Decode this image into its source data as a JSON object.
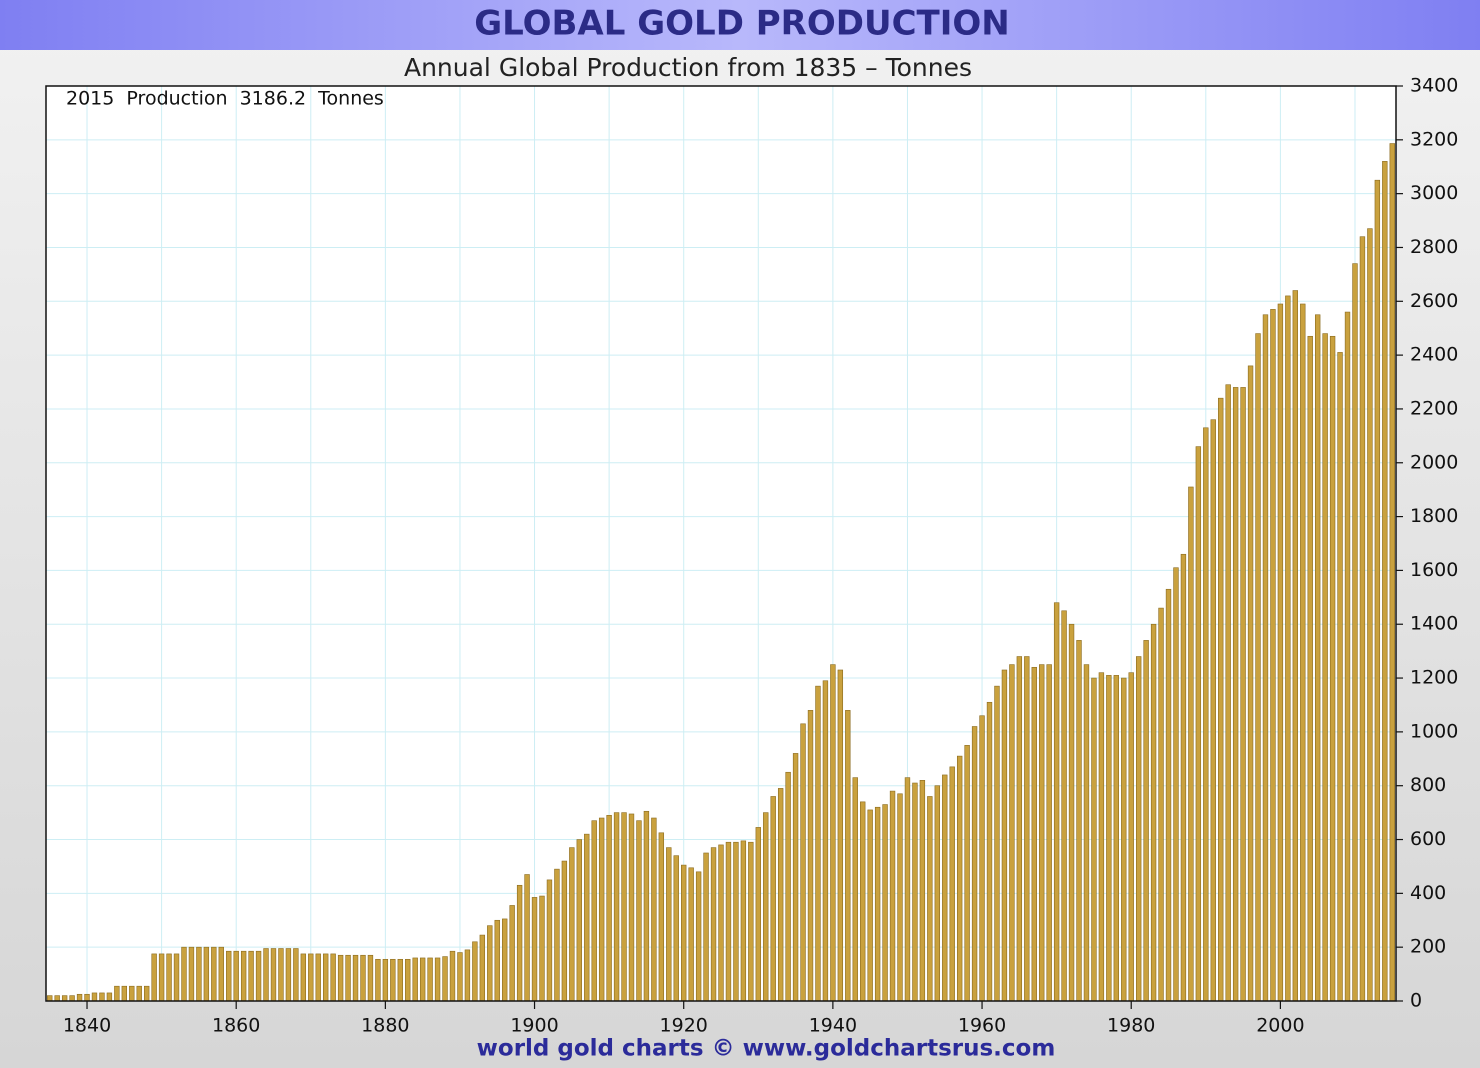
{
  "chart_data": {
    "type": "bar",
    "title": "GLOBAL GOLD PRODUCTION",
    "subtitle": "Annual Global Production from 1835 – Tonnes",
    "annotation": "2015  Production  3186.2  Tonnes",
    "footer": "world gold charts © www.goldchartsrus.com",
    "color": "#c9a13e",
    "grid": true,
    "xlim": [
      1834.5,
      2015.5
    ],
    "xticks": [
      1840,
      1860,
      1880,
      1900,
      1920,
      1940,
      1960,
      1980,
      2000
    ],
    "xgrid": [
      1840,
      1850,
      1860,
      1870,
      1880,
      1890,
      1900,
      1910,
      1920,
      1930,
      1940,
      1950,
      1960,
      1970,
      1980,
      1990,
      2000,
      2010
    ],
    "ylim": [
      0,
      3400
    ],
    "yticks": [
      0,
      200,
      400,
      600,
      800,
      1000,
      1200,
      1400,
      1600,
      1800,
      2000,
      2200,
      2400,
      2600,
      2800,
      3000,
      3200,
      3400
    ],
    "x": [
      1835,
      1836,
      1837,
      1838,
      1839,
      1840,
      1841,
      1842,
      1843,
      1844,
      1845,
      1846,
      1847,
      1848,
      1849,
      1850,
      1851,
      1852,
      1853,
      1854,
      1855,
      1856,
      1857,
      1858,
      1859,
      1860,
      1861,
      1862,
      1863,
      1864,
      1865,
      1866,
      1867,
      1868,
      1869,
      1870,
      1871,
      1872,
      1873,
      1874,
      1875,
      1876,
      1877,
      1878,
      1879,
      1880,
      1881,
      1882,
      1883,
      1884,
      1885,
      1886,
      1887,
      1888,
      1889,
      1890,
      1891,
      1892,
      1893,
      1894,
      1895,
      1896,
      1897,
      1898,
      1899,
      1900,
      1901,
      1902,
      1903,
      1904,
      1905,
      1906,
      1907,
      1908,
      1909,
      1910,
      1911,
      1912,
      1913,
      1914,
      1915,
      1916,
      1917,
      1918,
      1919,
      1920,
      1921,
      1922,
      1923,
      1924,
      1925,
      1926,
      1927,
      1928,
      1929,
      1930,
      1931,
      1932,
      1933,
      1934,
      1935,
      1936,
      1937,
      1938,
      1939,
      1940,
      1941,
      1942,
      1943,
      1944,
      1945,
      1946,
      1947,
      1948,
      1949,
      1950,
      1951,
      1952,
      1953,
      1954,
      1955,
      1956,
      1957,
      1958,
      1959,
      1960,
      1961,
      1962,
      1963,
      1964,
      1965,
      1966,
      1967,
      1968,
      1969,
      1970,
      1971,
      1972,
      1973,
      1974,
      1975,
      1976,
      1977,
      1978,
      1979,
      1980,
      1981,
      1982,
      1983,
      1984,
      1985,
      1986,
      1987,
      1988,
      1989,
      1990,
      1991,
      1992,
      1993,
      1994,
      1995,
      1996,
      1997,
      1998,
      1999,
      2000,
      2001,
      2002,
      2003,
      2004,
      2005,
      2006,
      2007,
      2008,
      2009,
      2010,
      2011,
      2012,
      2013,
      2014,
      2015
    ],
    "values": [
      20,
      20,
      20,
      20,
      25,
      25,
      30,
      30,
      30,
      55,
      55,
      55,
      55,
      55,
      175,
      175,
      175,
      175,
      200,
      200,
      200,
      200,
      200,
      200,
      185,
      185,
      185,
      185,
      185,
      195,
      195,
      195,
      195,
      195,
      175,
      175,
      175,
      175,
      175,
      170,
      170,
      170,
      170,
      170,
      155,
      155,
      155,
      155,
      155,
      160,
      160,
      160,
      160,
      165,
      185,
      180,
      190,
      220,
      245,
      280,
      300,
      305,
      355,
      430,
      470,
      385,
      390,
      450,
      490,
      520,
      570,
      600,
      620,
      670,
      680,
      690,
      700,
      700,
      695,
      670,
      705,
      680,
      625,
      570,
      540,
      505,
      495,
      480,
      550,
      570,
      580,
      590,
      590,
      595,
      590,
      645,
      700,
      760,
      790,
      850,
      920,
      1030,
      1080,
      1170,
      1190,
      1250,
      1230,
      1080,
      830,
      740,
      710,
      720,
      730,
      780,
      770,
      830,
      810,
      820,
      760,
      800,
      840,
      870,
      910,
      950,
      1020,
      1060,
      1110,
      1170,
      1230,
      1250,
      1280,
      1280,
      1240,
      1250,
      1250,
      1480,
      1450,
      1400,
      1340,
      1250,
      1200,
      1220,
      1210,
      1210,
      1200,
      1220,
      1280,
      1340,
      1400,
      1460,
      1530,
      1610,
      1660,
      1910,
      2060,
      2130,
      2160,
      2240,
      2290,
      2280,
      2280,
      2360,
      2480,
      2550,
      2570,
      2590,
      2620,
      2640,
      2590,
      2470,
      2550,
      2480,
      2470,
      2410,
      2560,
      2740,
      2840,
      2870,
      3050,
      3120,
      3186.2
    ]
  }
}
